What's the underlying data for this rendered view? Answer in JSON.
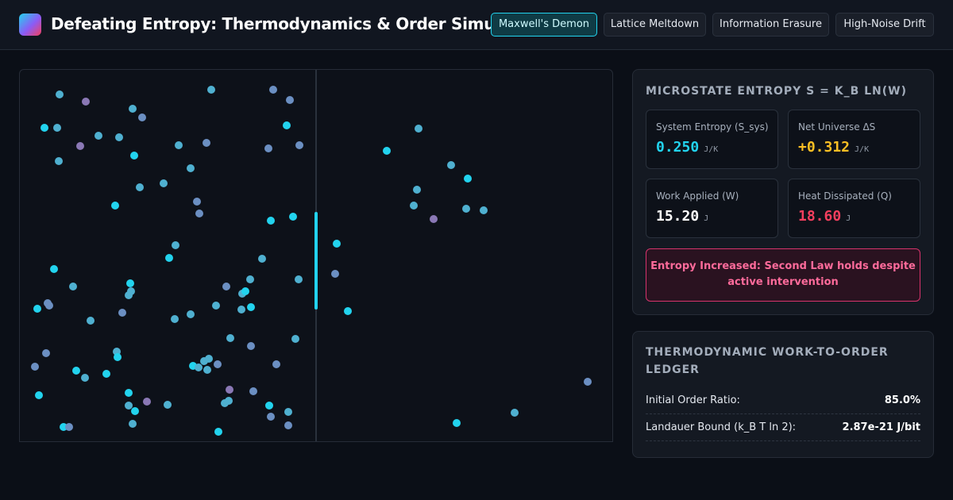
{
  "header": {
    "title": "Defeating Entropy: Thermodynamics & Order Simulator",
    "tabs": [
      {
        "label": "Maxwell's Demon",
        "active": true
      },
      {
        "label": "Lattice Meltdown",
        "active": false
      },
      {
        "label": "Information Erasure",
        "active": false
      },
      {
        "label": "High-Noise Drift",
        "active": false
      }
    ]
  },
  "entropy_panel": {
    "title": "MICROSTATE ENTROPY S = K_B LN(W)",
    "metrics": [
      {
        "label": "System Entropy (S_sys)",
        "value": "0.250",
        "unit": "J/K",
        "color": "#22d3ee"
      },
      {
        "label": "Net Universe ΔS",
        "value": "+0.312",
        "unit": "J/K",
        "color": "#fbbf24"
      },
      {
        "label": "Work Applied (W)",
        "value": "15.20",
        "unit": "J",
        "color": "#ffffff"
      },
      {
        "label": "Heat Dissipated (Q)",
        "value": "18.60",
        "unit": "J",
        "color": "#f43f5e"
      }
    ],
    "alert": "Entropy Increased: Second Law holds despite active intervention"
  },
  "ledger_panel": {
    "title_line1": "THERMODYNAMIC WORK-TO-ORDER",
    "title_line2": "LEDGER",
    "rows": [
      {
        "label": "Initial Order Ratio:",
        "value": "85.0%"
      },
      {
        "label": "Landauer Bound (k_B T ln 2):",
        "value": "2.87e-21 J/bit"
      }
    ]
  },
  "particle_colors": {
    "fast": "#22d3ee",
    "medium": "#4fb0d0",
    "slow": "#6b8fc2",
    "cold": "#8a78b5"
  }
}
